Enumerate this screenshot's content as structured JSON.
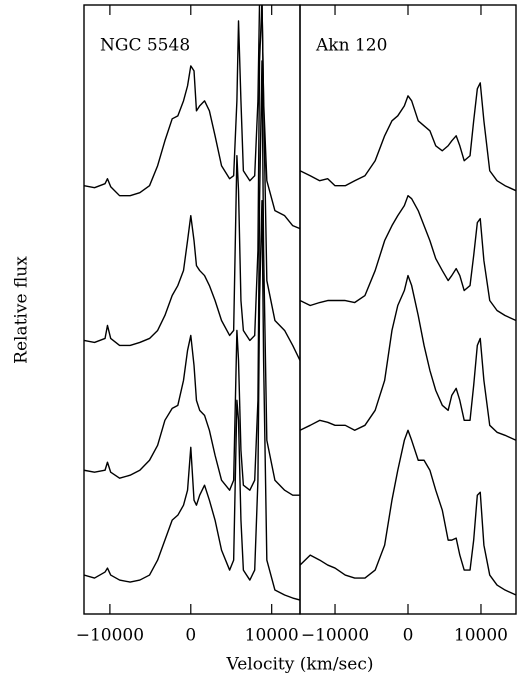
{
  "chart_data": {
    "type": "line",
    "x_label": "Velocity (km/sec)",
    "y_label": "Relative flux",
    "color": "#000000",
    "ylim": [
      0,
      610
    ],
    "panels": [
      {
        "title": "NGC 5548",
        "xlim": [
          -13200,
          13500
        ],
        "xticks": [
          {
            "value": -10000,
            "label": "−10000"
          },
          0,
          10000
        ],
        "x": [
          -13200,
          -11900,
          -10600,
          -10300,
          -9900,
          -8800,
          -7500,
          -6300,
          -5100,
          -4100,
          -3200,
          -2300,
          -1600,
          -900,
          -400,
          0,
          400,
          700,
          1100,
          1700,
          2300,
          3000,
          3800,
          4800,
          5300,
          5700,
          5900,
          6200,
          6500,
          7300,
          7900,
          8300,
          8500,
          8800,
          9000,
          9400,
          10400,
          11600,
          12600,
          13500
        ],
        "series": [
          {
            "values": [
              429,
              427,
              431,
              436,
              428,
              419,
              419,
              422,
              429,
              449,
              474,
              496,
              499,
              514,
              529,
              549,
              544,
              504,
              509,
              514,
              504,
              479,
              449,
              436,
              439,
              514,
              594,
              514,
              444,
              434,
              439,
              514,
              614,
              614,
              514,
              434,
              404,
              399,
              389,
              386
            ]
          },
          {
            "values": [
              274,
              272,
              276,
              289,
              276,
              269,
              269,
              272,
              276,
              284,
              299,
              319,
              329,
              344,
              374,
              399,
              374,
              349,
              344,
              339,
              329,
              314,
              294,
              279,
              284,
              459,
              424,
              314,
              284,
              274,
              279,
              364,
              554,
              614,
              514,
              334,
              294,
              284,
              269,
              254
            ]
          },
          {
            "values": [
              144,
              142,
              144,
              152,
              142,
              136,
              139,
              144,
              154,
              169,
              194,
              206,
              209,
              234,
              264,
              279,
              249,
              214,
              204,
              199,
              184,
              159,
              134,
              124,
              134,
              284,
              254,
              164,
              129,
              124,
              134,
              214,
              414,
              554,
              364,
              174,
              134,
              124,
              119,
              119
            ]
          },
          {
            "values": [
              39,
              36,
              42,
              46,
              39,
              34,
              32,
              34,
              39,
              54,
              74,
              94,
              99,
              109,
              124,
              167,
              114,
              109,
              119,
              129,
              114,
              94,
              64,
              44,
              54,
              214,
              194,
              94,
              44,
              34,
              44,
              134,
              314,
              414,
              254,
              54,
              24,
              19,
              16,
              14
            ]
          }
        ]
      },
      {
        "title": "Akn 120",
        "xlim": [
          -14800,
          14800
        ],
        "xticks": [
          {
            "value": -10000,
            "label": "−10000"
          },
          0,
          10000
        ],
        "x": [
          -14800,
          -13400,
          -12100,
          -11000,
          -10000,
          -8600,
          -7300,
          -5900,
          -4500,
          -3200,
          -2200,
          -1400,
          -500,
          0,
          500,
          1400,
          2200,
          3000,
          3800,
          4700,
          5500,
          6000,
          6600,
          7100,
          7700,
          8500,
          9000,
          9500,
          9900,
          10400,
          11200,
          12200,
          13300,
          14800
        ],
        "series": [
          {
            "values": [
              444,
              439,
              434,
              436,
              429,
              429,
              434,
              439,
              454,
              479,
              494,
              499,
              509,
              519,
              514,
              494,
              489,
              484,
              469,
              464,
              469,
              474,
              479,
              469,
              454,
              459,
              494,
              526,
              532,
              494,
              444,
              434,
              429,
              424
            ]
          },
          {
            "values": [
              314,
              309,
              312,
              314,
              314,
              314,
              312,
              319,
              344,
              374,
              389,
              399,
              409,
              419,
              416,
              404,
              389,
              374,
              356,
              344,
              334,
              339,
              346,
              339,
              324,
              329,
              359,
              392,
              396,
              354,
              314,
              304,
              299,
              294
            ]
          },
          {
            "values": [
              184,
              189,
              194,
              192,
              189,
              189,
              184,
              189,
              204,
              234,
              284,
              309,
              324,
              339,
              329,
              299,
              269,
              244,
              224,
              209,
              204,
              219,
              226,
              214,
              194,
              194,
              229,
              269,
              276,
              234,
              189,
              182,
              179,
              174
            ]
          },
          {
            "values": [
              49,
              59,
              54,
              49,
              46,
              39,
              36,
              36,
              44,
              69,
              114,
              144,
              174,
              184,
              174,
              154,
              154,
              144,
              124,
              104,
              74,
              74,
              76,
              59,
              44,
              44,
              74,
              119,
              122,
              69,
              39,
              29,
              24,
              19
            ]
          }
        ]
      }
    ]
  }
}
